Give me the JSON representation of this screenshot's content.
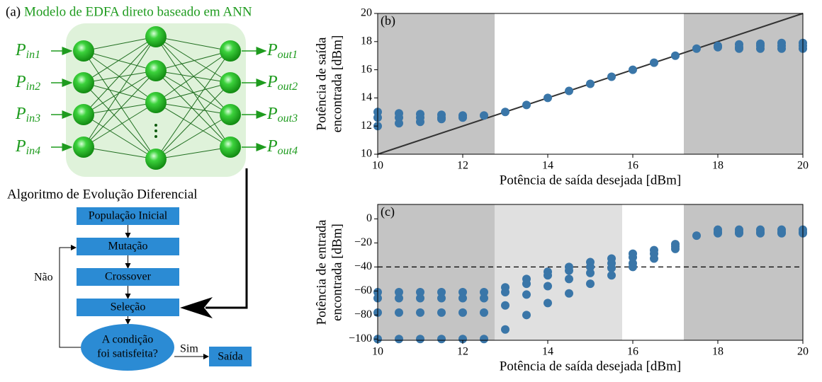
{
  "diagram": {
    "panel_label": "(a)",
    "title": "Modelo de EDFA direto baseado em ANN",
    "inputs": [
      {
        "symbol": "P",
        "subscript": "in1"
      },
      {
        "symbol": "P",
        "subscript": "in2"
      },
      {
        "symbol": "P",
        "subscript": "in3"
      },
      {
        "symbol": "P",
        "subscript": "in4"
      }
    ],
    "outputs": [
      {
        "symbol": "P",
        "subscript": "out1"
      },
      {
        "symbol": "P",
        "subscript": "out2"
      },
      {
        "symbol": "P",
        "subscript": "out3"
      },
      {
        "symbol": "P",
        "subscript": "out4"
      }
    ],
    "algorithm_title": "Algoritmo de Evolução Diferencial",
    "steps": [
      "População Inicial",
      "Mutação",
      "Crossover",
      "Seleção"
    ],
    "condition": [
      "A condição",
      "foi satisfeita?"
    ],
    "yes": "Sim",
    "no": "Não",
    "output": "Saída"
  },
  "chart_data": [
    {
      "type": "scatter",
      "panel_label": "(b)",
      "xlabel": "Potência de saída desejada [dBm]",
      "ylabel": [
        "Potência de saída",
        "encontrada [dBm]"
      ],
      "xlim": [
        10,
        20
      ],
      "ylim": [
        10,
        20
      ],
      "xticks": [
        10,
        12,
        14,
        16,
        18,
        20
      ],
      "yticks": [
        10,
        12,
        14,
        16,
        18,
        20
      ],
      "color": "#3a76a8",
      "diagonal": true,
      "shaded_regions": [
        {
          "x": [
            10,
            12.75
          ],
          "color": "#c4c4c4"
        },
        {
          "x": [
            17.2,
            20
          ],
          "color": "#c4c4c4"
        }
      ],
      "x": [
        10,
        10,
        10,
        10.5,
        10.5,
        10.5,
        11,
        11,
        11,
        11.5,
        11.5,
        11.5,
        12,
        12,
        12.5,
        13,
        13.5,
        14,
        14.5,
        15,
        15.5,
        16,
        16.5,
        17,
        17.5,
        18,
        18,
        18.5,
        18.5,
        18.5,
        19,
        19,
        19,
        19.5,
        19.5,
        19.5,
        20,
        20,
        20
      ],
      "y": [
        13,
        12.6,
        12,
        12.9,
        12.6,
        12.2,
        12.85,
        12.6,
        12.3,
        12.8,
        12.6,
        12.5,
        12.75,
        12.6,
        12.75,
        13,
        13.5,
        14,
        14.5,
        15,
        15.5,
        16,
        16.5,
        17,
        17.5,
        17.7,
        17.6,
        17.8,
        17.6,
        17.5,
        17.85,
        17.7,
        17.5,
        17.9,
        17.7,
        17.5,
        17.9,
        17.7,
        17.5
      ]
    },
    {
      "type": "scatter",
      "panel_label": "(c)",
      "xlabel": "Potência de saída desejada [dBm]",
      "ylabel": [
        "Potência de entrada",
        "encontrada [dBm]"
      ],
      "xlim": [
        10,
        20
      ],
      "ylim": [
        -101,
        12
      ],
      "xticks": [
        10,
        12,
        14,
        16,
        18,
        20
      ],
      "yticks": [
        {
          "value": -100,
          "label": "−100"
        },
        {
          "value": -80,
          "label": "−80"
        },
        {
          "value": -60,
          "label": "−60"
        },
        {
          "value": -40,
          "label": "−40"
        },
        {
          "value": -20,
          "label": "−20"
        },
        0
      ],
      "color": "#3a76a8",
      "hline": -40,
      "shaded_regions": [
        {
          "x": [
            10,
            12.75
          ],
          "color": "#c4c4c4"
        },
        {
          "x": [
            12.75,
            15.75
          ],
          "color": "#e0e0e0"
        },
        {
          "x": [
            17.2,
            20
          ],
          "color": "#c4c4c4"
        }
      ],
      "x": [
        10,
        10,
        10,
        10,
        10.5,
        10.5,
        10.5,
        10.5,
        11,
        11,
        11,
        11,
        11.5,
        11.5,
        11.5,
        11.5,
        12,
        12,
        12,
        12,
        12.5,
        12.5,
        12.5,
        12.5,
        13,
        13,
        13,
        13,
        13.5,
        13.5,
        13.5,
        13.5,
        14,
        14,
        14,
        14,
        14.5,
        14.5,
        14.5,
        14.5,
        15,
        15,
        15,
        15,
        15.5,
        15.5,
        15.5,
        15.5,
        16,
        16,
        16,
        16,
        16.5,
        16.5,
        16.5,
        17,
        17,
        17,
        17.5,
        18,
        18,
        18,
        18.5,
        18.5,
        18.5,
        19,
        19,
        19,
        19.5,
        19.5,
        19.5,
        20,
        20,
        20
      ],
      "y": [
        -61,
        -66,
        -78,
        -100,
        -61,
        -66,
        -78,
        -100,
        -61,
        -66,
        -78,
        -100,
        -61,
        -66,
        -78,
        -100,
        -61,
        -66,
        -78,
        -100,
        -61,
        -66,
        -78,
        -100,
        -57,
        -61,
        -72,
        -92,
        -50,
        -54,
        -63,
        -80,
        -44,
        -47,
        -56,
        -70,
        -40,
        -43,
        -50,
        -62,
        -36,
        -40,
        -45,
        -54,
        -33,
        -37,
        -41,
        -47,
        -29,
        -32,
        -37,
        -40,
        -26,
        -29,
        -33,
        -21,
        -23,
        -25,
        -14,
        -9,
        -11,
        -12,
        -9,
        -11,
        -12,
        -9,
        -11,
        -12,
        -9,
        -11,
        -12,
        -9,
        -11,
        -12
      ]
    }
  ]
}
